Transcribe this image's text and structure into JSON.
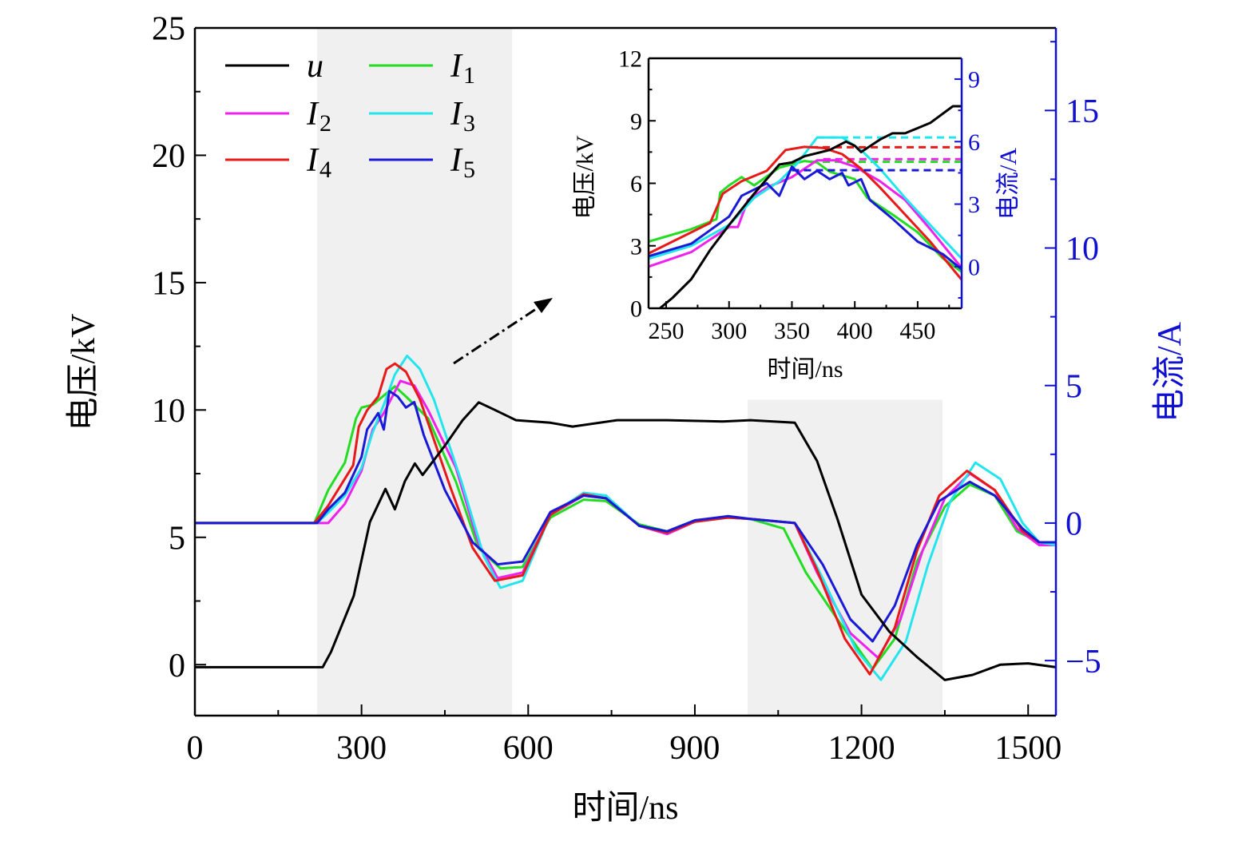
{
  "chart_data": [
    {
      "type": "line",
      "xlabel": "时间/ns",
      "ylabel": "电压/kV",
      "ylabel_right": "电流/A",
      "xlim": [
        0,
        1550
      ],
      "ylim": [
        -2,
        25
      ],
      "ylim_right": [
        -7,
        18
      ],
      "x_ticks": [
        0,
        300,
        600,
        900,
        1200,
        1500
      ],
      "y_ticks": [
        0,
        5,
        10,
        15,
        20,
        25
      ],
      "y_ticks_right": [
        -5,
        0,
        5,
        10,
        15
      ],
      "y_tick_labels_right": [
        "−5",
        "0",
        "5",
        "10",
        "15"
      ],
      "grid": false,
      "legend_placement": "top-left",
      "shaded_regions_ns": [
        [
          220,
          571
        ],
        [
          995,
          1346
        ]
      ],
      "shaded_region_top_kV": [
        25,
        10.4
      ],
      "colors": {
        "u": "#000000",
        "I1": "#22dd22",
        "I2": "#ee22ee",
        "I3": "#22e5ee",
        "I4": "#e81919",
        "I5": "#1a1ad6",
        "right_axis": "#1010d0",
        "shade": "#f0f0f0"
      },
      "series": [
        {
          "name": "u",
          "sub": "",
          "key": "u",
          "axis": "left",
          "x": [
            0,
            230,
            245,
            286,
            315,
            343,
            360,
            378,
            396,
            410,
            450,
            482,
            511,
            540,
            578,
            640,
            680,
            760,
            850,
            950,
            1000,
            1080,
            1120,
            1157,
            1200,
            1250,
            1300,
            1350,
            1400,
            1450,
            1500,
            1550
          ],
          "y": [
            -0.1,
            -0.1,
            0.5,
            2.7,
            5.6,
            6.9,
            6.1,
            7.2,
            7.9,
            7.45,
            8.6,
            9.6,
            10.3,
            10.0,
            9.6,
            9.5,
            9.35,
            9.6,
            9.6,
            9.55,
            9.6,
            9.5,
            8.0,
            5.7,
            2.75,
            1.3,
            0.3,
            -0.6,
            -0.4,
            0.0,
            0.05,
            -0.1
          ]
        },
        {
          "name": "I",
          "sub": "1",
          "key": "I1",
          "axis": "right",
          "x": [
            0,
            215,
            240,
            270,
            290,
            300,
            320,
            360,
            380,
            420,
            470,
            510,
            550,
            590,
            640,
            700,
            740,
            800,
            850,
            900,
            960,
            1000,
            1060,
            1100,
            1160,
            1220,
            1260,
            1300,
            1350,
            1395,
            1440,
            1480,
            1520,
            1550
          ],
          "y": [
            0,
            0,
            1.2,
            2.2,
            3.8,
            4.2,
            4.3,
            4.97,
            4.6,
            3.8,
            1.5,
            -0.9,
            -1.65,
            -1.6,
            0.2,
            0.85,
            0.8,
            -0.05,
            -0.3,
            0.1,
            0.2,
            0.15,
            -0.2,
            -1.8,
            -3.6,
            -5.3,
            -4.2,
            -1.4,
            0.6,
            1.4,
            1.0,
            -0.3,
            -0.7,
            -0.7
          ]
        },
        {
          "name": "I",
          "sub": "2",
          "key": "I2",
          "axis": "right",
          "x": [
            0,
            225,
            240,
            270,
            300,
            320,
            340,
            370,
            395,
            420,
            470,
            510,
            545,
            590,
            640,
            700,
            740,
            800,
            850,
            900,
            960,
            1000,
            1080,
            1120,
            1180,
            1230,
            1270,
            1310,
            1350,
            1395,
            1440,
            1480,
            1520,
            1550
          ],
          "y": [
            0,
            0,
            0.0,
            0.7,
            1.9,
            3.4,
            4.0,
            5.17,
            5.0,
            4.1,
            2.0,
            -0.7,
            -2.0,
            -1.8,
            0.3,
            1.0,
            0.9,
            -0.1,
            -0.4,
            0.05,
            0.2,
            0.15,
            0.0,
            -1.8,
            -4.0,
            -4.9,
            -3.5,
            -1.0,
            0.9,
            1.8,
            1.2,
            -0.2,
            -0.8,
            -0.8
          ]
        },
        {
          "name": "I",
          "sub": "3",
          "key": "I3",
          "axis": "right",
          "x": [
            0,
            220,
            240,
            270,
            300,
            320,
            340,
            360,
            382,
            405,
            430,
            480,
            520,
            550,
            590,
            640,
            700,
            740,
            800,
            850,
            900,
            960,
            1000,
            1080,
            1130,
            1190,
            1235,
            1280,
            1320,
            1360,
            1405,
            1450,
            1490,
            1520,
            1550
          ],
          "y": [
            0,
            0,
            0.38,
            1.0,
            2.0,
            3.3,
            4.3,
            5.4,
            6.08,
            5.6,
            4.5,
            1.5,
            -1.2,
            -2.35,
            -2.1,
            0.3,
            1.1,
            1.0,
            -0.1,
            -0.35,
            0.05,
            0.2,
            0.15,
            0.0,
            -2.0,
            -4.6,
            -5.7,
            -4.3,
            -1.5,
            0.8,
            2.2,
            1.6,
            0.0,
            -0.7,
            -0.8
          ]
        },
        {
          "name": "I",
          "sub": "4",
          "key": "I4",
          "axis": "right",
          "x": [
            0,
            215,
            240,
            285,
            295,
            310,
            330,
            345,
            360,
            380,
            405,
            460,
            500,
            540,
            590,
            640,
            700,
            740,
            800,
            850,
            900,
            960,
            1000,
            1080,
            1120,
            1170,
            1215,
            1260,
            1300,
            1340,
            1390,
            1440,
            1490,
            1520,
            1550
          ],
          "y": [
            0,
            0,
            0.63,
            2.1,
            3.5,
            4.1,
            4.6,
            5.6,
            5.8,
            5.5,
            4.5,
            1.3,
            -0.9,
            -2.1,
            -1.9,
            0.3,
            1.05,
            0.9,
            -0.1,
            -0.35,
            0.05,
            0.2,
            0.15,
            0.0,
            -1.7,
            -4.2,
            -5.5,
            -3.8,
            -1.0,
            1.0,
            1.9,
            1.2,
            -0.3,
            -0.7,
            -0.7
          ]
        },
        {
          "name": "I",
          "sub": "5",
          "key": "I5",
          "axis": "right",
          "x": [
            0,
            220,
            240,
            270,
            300,
            310,
            330,
            340,
            350,
            365,
            380,
            395,
            412,
            450,
            500,
            545,
            590,
            640,
            700,
            740,
            800,
            850,
            900,
            960,
            1000,
            1080,
            1130,
            1180,
            1220,
            1260,
            1300,
            1340,
            1395,
            1440,
            1490,
            1520,
            1550
          ],
          "y": [
            0,
            0,
            0.5,
            1.1,
            2.4,
            3.4,
            4.0,
            3.4,
            4.8,
            4.6,
            4.2,
            4.4,
            3.2,
            1.2,
            -0.7,
            -1.5,
            -1.4,
            0.4,
            1.0,
            0.9,
            -0.1,
            -0.3,
            0.1,
            0.25,
            0.15,
            0.0,
            -1.5,
            -3.5,
            -4.3,
            -3.0,
            -0.8,
            0.8,
            1.5,
            1.0,
            -0.2,
            -0.7,
            -0.7
          ]
        }
      ]
    },
    {
      "type": "line",
      "xlabel": "时间/ns",
      "ylabel": "电压/kV",
      "ylabel_right": "电流/A",
      "xlim": [
        236,
        485
      ],
      "ylim": [
        0,
        12
      ],
      "ylim_right": [
        -2,
        10
      ],
      "x_ticks": [
        250,
        300,
        350,
        400,
        450
      ],
      "y_ticks": [
        0,
        3,
        6,
        9,
        12
      ],
      "y_ticks_right": [
        0,
        3,
        6,
        9
      ],
      "grid": false,
      "series": [
        {
          "key": "u",
          "axis": "left",
          "x": [
            245,
            255,
            270,
            285,
            300,
            320,
            340,
            350,
            360,
            380,
            393,
            400,
            405,
            420,
            430,
            440,
            460,
            478,
            485
          ],
          "y": [
            0,
            0.5,
            1.4,
            2.8,
            4.0,
            5.5,
            6.9,
            7.0,
            7.3,
            7.6,
            8.0,
            7.8,
            7.5,
            8.1,
            8.4,
            8.4,
            8.9,
            9.7,
            9.7
          ]
        },
        {
          "key": "I1",
          "axis": "right",
          "plateau": {
            "from": 365,
            "value": 5.03
          },
          "x": [
            236,
            270,
            290,
            293,
            300,
            310,
            320,
            340,
            360,
            370,
            380,
            400,
            410,
            430,
            450,
            470,
            485
          ],
          "y": [
            1.2,
            1.8,
            2.28,
            3.55,
            3.9,
            4.3,
            3.9,
            4.75,
            5.07,
            5.0,
            4.56,
            4.2,
            3.3,
            2.5,
            1.65,
            0.4,
            -0.25
          ]
        },
        {
          "key": "I2",
          "axis": "right",
          "plateau": {
            "from": 375,
            "value": 5.16
          },
          "x": [
            236,
            270,
            300,
            307,
            315,
            330,
            350,
            370,
            385,
            400,
            420,
            440,
            460,
            485
          ],
          "y": [
            0,
            0.7,
            1.9,
            1.9,
            3.2,
            3.8,
            4.3,
            5.1,
            5.1,
            4.8,
            4.1,
            3.2,
            1.8,
            -0.06
          ]
        },
        {
          "key": "I3",
          "axis": "right",
          "plateau": {
            "from": 370,
            "value": 6.2
          },
          "x": [
            236,
            270,
            300,
            320,
            340,
            355,
            370,
            390,
            405,
            420,
            440,
            460,
            485
          ],
          "y": [
            0.38,
            1.0,
            2.0,
            3.3,
            4.1,
            5.0,
            6.2,
            6.2,
            5.6,
            4.7,
            3.3,
            2.0,
            0.38
          ]
        },
        {
          "key": "I4",
          "axis": "right",
          "plateau": {
            "from": 365,
            "value": 5.73
          },
          "x": [
            236,
            285,
            295,
            310,
            330,
            345,
            360,
            375,
            390,
            405,
            420,
            440,
            460,
            485
          ],
          "y": [
            0.63,
            2.1,
            3.5,
            4.1,
            4.6,
            5.6,
            5.75,
            5.7,
            5.4,
            4.7,
            3.8,
            2.5,
            1.2,
            -0.63
          ]
        },
        {
          "key": "I5",
          "axis": "right",
          "plateau": {
            "from": 350,
            "value": 4.63
          },
          "x": [
            236,
            270,
            300,
            310,
            330,
            340,
            350,
            360,
            370,
            380,
            390,
            395,
            405,
            412,
            430,
            450,
            470,
            485
          ],
          "y": [
            0.5,
            1.1,
            2.4,
            3.4,
            4.0,
            3.4,
            4.8,
            4.2,
            4.6,
            4.2,
            4.5,
            3.9,
            4.2,
            3.2,
            2.3,
            1.2,
            0.6,
            -0.13
          ]
        }
      ]
    }
  ]
}
